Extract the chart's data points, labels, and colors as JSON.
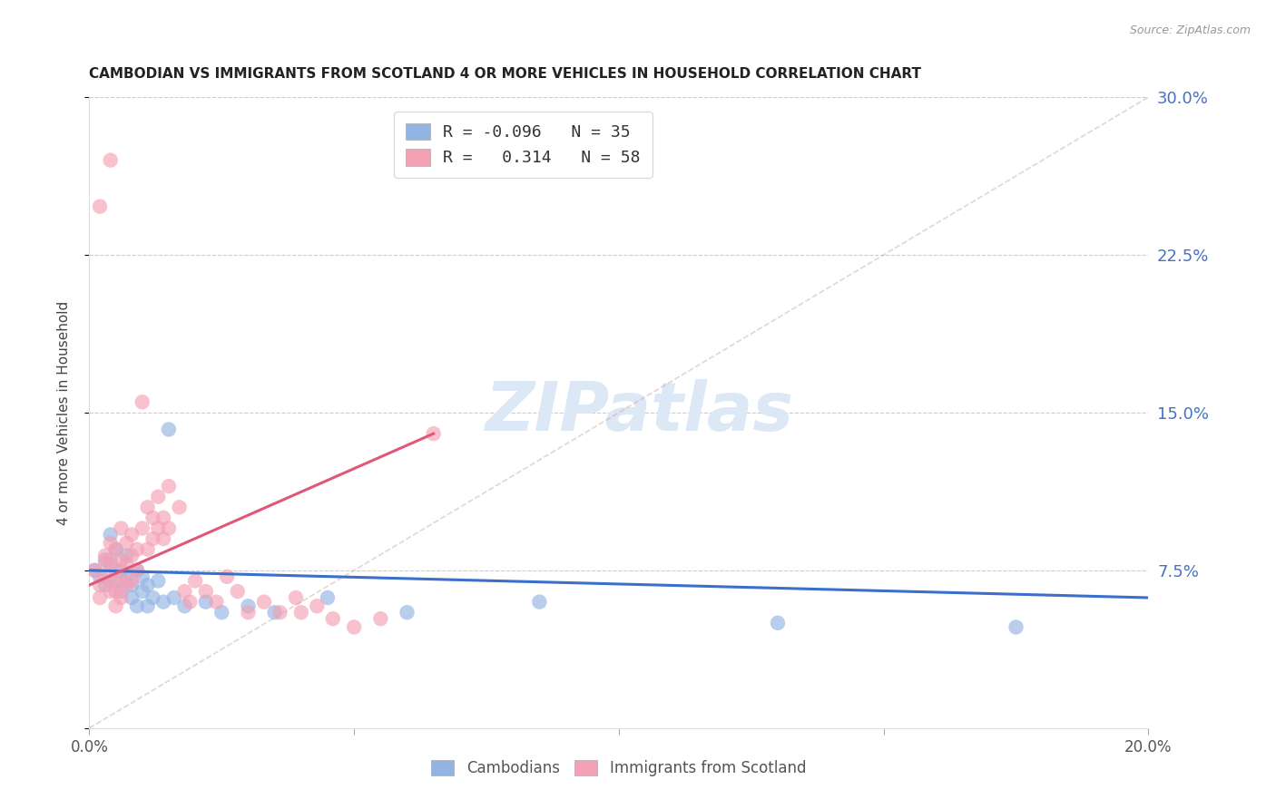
{
  "title": "CAMBODIAN VS IMMIGRANTS FROM SCOTLAND 4 OR MORE VEHICLES IN HOUSEHOLD CORRELATION CHART",
  "source": "Source: ZipAtlas.com",
  "ylabel": "4 or more Vehicles in Household",
  "xmin": 0.0,
  "xmax": 0.2,
  "ymin": 0.0,
  "ymax": 0.3,
  "cambodian_color": "#92b4e3",
  "scotland_color": "#f4a0b5",
  "cambodian_line_color": "#3a6fcc",
  "scotland_line_color": "#e05878",
  "diagonal_color": "#ccaaaa",
  "R_cambodian": -0.096,
  "N_cambodian": 35,
  "R_scotland": 0.314,
  "N_scotland": 58,
  "cambodian_points": [
    [
      0.001,
      0.075
    ],
    [
      0.002,
      0.072
    ],
    [
      0.003,
      0.08
    ],
    [
      0.003,
      0.068
    ],
    [
      0.004,
      0.092
    ],
    [
      0.004,
      0.078
    ],
    [
      0.005,
      0.085
    ],
    [
      0.005,
      0.07
    ],
    [
      0.006,
      0.075
    ],
    [
      0.006,
      0.065
    ],
    [
      0.007,
      0.082
    ],
    [
      0.007,
      0.072
    ],
    [
      0.008,
      0.068
    ],
    [
      0.008,
      0.062
    ],
    [
      0.009,
      0.075
    ],
    [
      0.009,
      0.058
    ],
    [
      0.01,
      0.072
    ],
    [
      0.01,
      0.065
    ],
    [
      0.011,
      0.068
    ],
    [
      0.011,
      0.058
    ],
    [
      0.012,
      0.062
    ],
    [
      0.013,
      0.07
    ],
    [
      0.014,
      0.06
    ],
    [
      0.015,
      0.142
    ],
    [
      0.016,
      0.062
    ],
    [
      0.018,
      0.058
    ],
    [
      0.022,
      0.06
    ],
    [
      0.025,
      0.055
    ],
    [
      0.03,
      0.058
    ],
    [
      0.035,
      0.055
    ],
    [
      0.045,
      0.062
    ],
    [
      0.06,
      0.055
    ],
    [
      0.085,
      0.06
    ],
    [
      0.13,
      0.05
    ],
    [
      0.175,
      0.048
    ]
  ],
  "scotland_points": [
    [
      0.001,
      0.075
    ],
    [
      0.002,
      0.068
    ],
    [
      0.002,
      0.062
    ],
    [
      0.003,
      0.082
    ],
    [
      0.003,
      0.078
    ],
    [
      0.003,
      0.072
    ],
    [
      0.004,
      0.088
    ],
    [
      0.004,
      0.08
    ],
    [
      0.004,
      0.07
    ],
    [
      0.004,
      0.065
    ],
    [
      0.005,
      0.085
    ],
    [
      0.005,
      0.075
    ],
    [
      0.005,
      0.065
    ],
    [
      0.005,
      0.058
    ],
    [
      0.006,
      0.095
    ],
    [
      0.006,
      0.08
    ],
    [
      0.006,
      0.07
    ],
    [
      0.006,
      0.062
    ],
    [
      0.007,
      0.088
    ],
    [
      0.007,
      0.078
    ],
    [
      0.007,
      0.068
    ],
    [
      0.008,
      0.092
    ],
    [
      0.008,
      0.082
    ],
    [
      0.008,
      0.07
    ],
    [
      0.009,
      0.085
    ],
    [
      0.009,
      0.075
    ],
    [
      0.01,
      0.155
    ],
    [
      0.01,
      0.095
    ],
    [
      0.011,
      0.105
    ],
    [
      0.011,
      0.085
    ],
    [
      0.012,
      0.1
    ],
    [
      0.012,
      0.09
    ],
    [
      0.013,
      0.11
    ],
    [
      0.013,
      0.095
    ],
    [
      0.014,
      0.1
    ],
    [
      0.014,
      0.09
    ],
    [
      0.015,
      0.115
    ],
    [
      0.015,
      0.095
    ],
    [
      0.017,
      0.105
    ],
    [
      0.018,
      0.065
    ],
    [
      0.019,
      0.06
    ],
    [
      0.02,
      0.07
    ],
    [
      0.022,
      0.065
    ],
    [
      0.024,
      0.06
    ],
    [
      0.026,
      0.072
    ],
    [
      0.028,
      0.065
    ],
    [
      0.03,
      0.055
    ],
    [
      0.033,
      0.06
    ],
    [
      0.036,
      0.055
    ],
    [
      0.039,
      0.062
    ],
    [
      0.04,
      0.055
    ],
    [
      0.043,
      0.058
    ],
    [
      0.046,
      0.052
    ],
    [
      0.05,
      0.048
    ],
    [
      0.055,
      0.052
    ],
    [
      0.004,
      0.27
    ],
    [
      0.002,
      0.248
    ],
    [
      0.065,
      0.14
    ]
  ]
}
